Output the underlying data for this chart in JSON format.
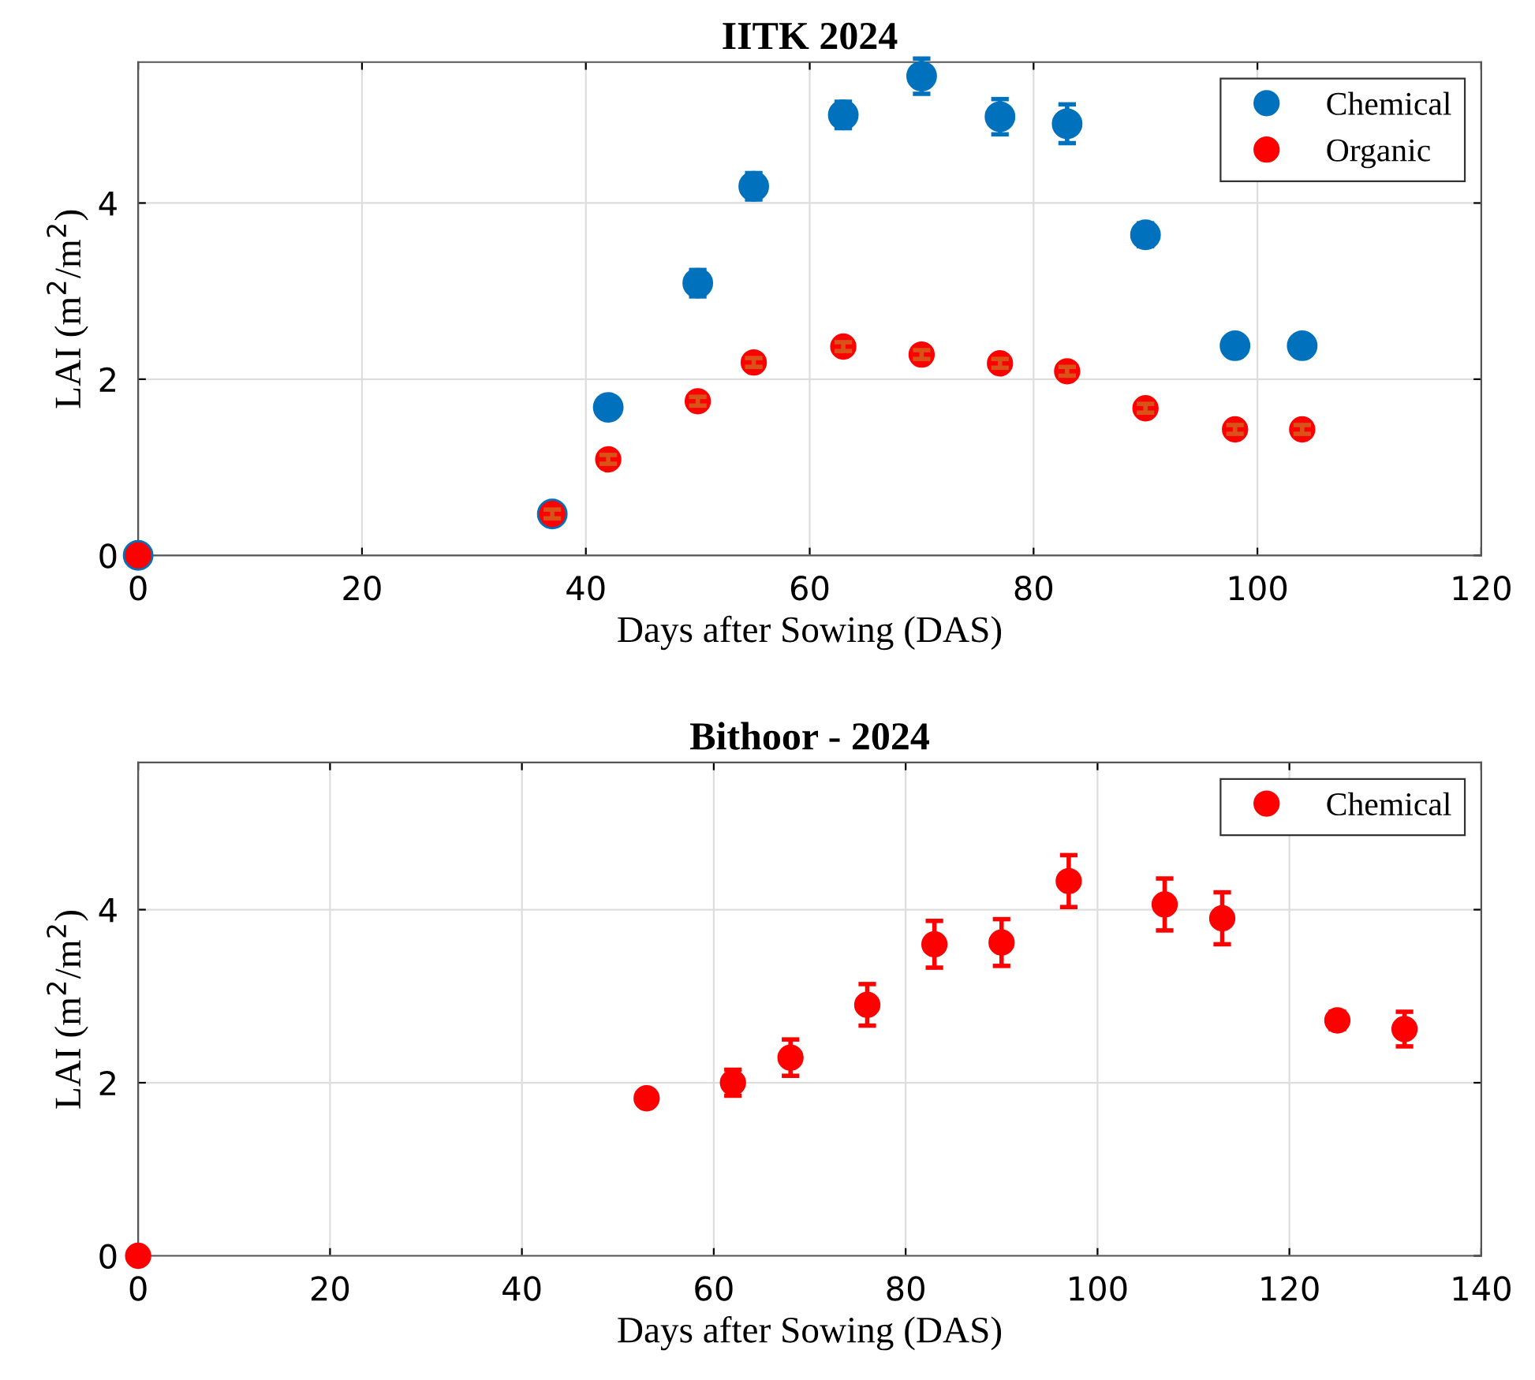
{
  "chart_data": [
    {
      "type": "scatter",
      "title": "IITK 2024",
      "xlabel": "Days after Sowing (DAS)",
      "ylabel": "LAI (m$^{2}$/m$^{2}$)",
      "xlim": [
        0,
        120
      ],
      "xticks": [
        0,
        20,
        40,
        60,
        80,
        100,
        120
      ],
      "ylim": [
        0,
        5.6
      ],
      "yticks": [
        0,
        2,
        4
      ],
      "grid": true,
      "legend": "top right",
      "marker": "circle",
      "series": [
        {
          "name": "Chemical",
          "color": "#0072bd",
          "x": [
            0,
            37,
            42,
            50,
            55,
            63,
            70,
            77,
            83,
            90,
            98,
            104
          ],
          "values": [
            0,
            0.47,
            1.68,
            3.09,
            4.19,
            5.0,
            5.44,
            4.98,
            4.9,
            3.64,
            2.38,
            2.38
          ],
          "errors": [
            null,
            null,
            0.08,
            0.15,
            0.15,
            0.15,
            0.2,
            0.2,
            0.22,
            0.13,
            0.08,
            0.08
          ]
        },
        {
          "name": "Organic",
          "color": "#ff0000",
          "x": [
            0,
            37,
            42,
            50,
            55,
            63,
            70,
            77,
            83,
            90,
            98,
            104
          ],
          "values": [
            0,
            0.47,
            1.09,
            1.75,
            2.19,
            2.37,
            2.28,
            2.18,
            2.09,
            1.67,
            1.43,
            1.43
          ],
          "errors": [
            null,
            0.05,
            0.05,
            0.05,
            0.05,
            0.05,
            0.05,
            0.05,
            0.05,
            0.05,
            0.05,
            0.05
          ]
        }
      ]
    },
    {
      "type": "scatter",
      "title": "Bithoor - 2024",
      "xlabel": "Days after Sowing (DAS)",
      "ylabel": "LAI (m$^{2}$/m$^{2}$)",
      "xlim": [
        0,
        140
      ],
      "xticks": [
        0,
        20,
        40,
        60,
        80,
        100,
        120,
        140
      ],
      "ylim": [
        0,
        5.7
      ],
      "yticks": [
        0,
        2,
        4
      ],
      "grid": true,
      "legend": "top right",
      "marker": "circle",
      "series": [
        {
          "name": "Chemical",
          "color": "#ff0000",
          "x": [
            0,
            53,
            62,
            68,
            76,
            83,
            90,
            97,
            107,
            113,
            125,
            132
          ],
          "values": [
            0,
            1.82,
            2.0,
            2.29,
            2.9,
            3.6,
            3.62,
            4.33,
            4.06,
            3.9,
            2.72,
            2.62
          ],
          "errors": [
            0.05,
            0.05,
            0.15,
            0.21,
            0.24,
            0.27,
            0.27,
            0.3,
            0.3,
            0.3,
            0.1,
            0.2
          ]
        }
      ]
    }
  ]
}
